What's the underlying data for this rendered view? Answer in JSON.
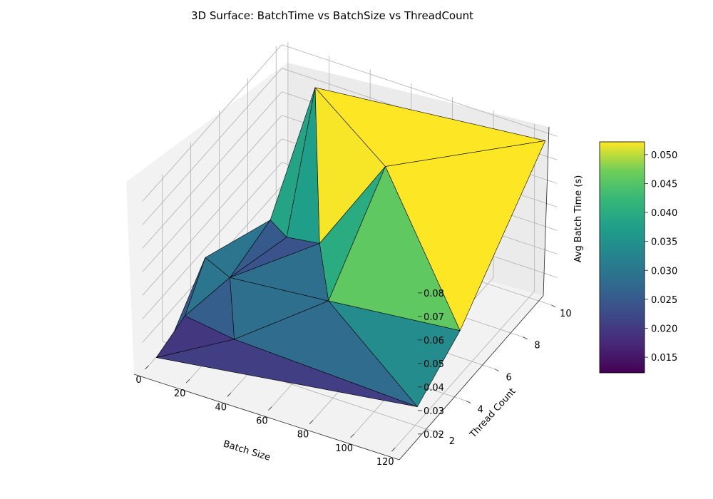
{
  "chart_data": {
    "type": "surface3d",
    "title": "3D Surface: BatchTime vs BatchSize vs ThreadCount",
    "xlabel": "Batch Size",
    "ylabel": "Thread Count",
    "zlabel": "Avg Batch Time (s)",
    "xticks": [
      "0",
      "20",
      "40",
      "60",
      "80",
      "100",
      "120"
    ],
    "yticks": [
      "2",
      "4",
      "6",
      "8",
      "10"
    ],
    "zticks": [
      "0.02",
      "0.03",
      "0.04",
      "0.05",
      "0.06",
      "0.07",
      "0.08"
    ],
    "colorbar": {
      "ticks": [
        "0.015",
        "0.020",
        "0.025",
        "0.030",
        "0.035",
        "0.040",
        "0.045",
        "0.050"
      ],
      "colormap": "viridis",
      "range": [
        0.0123,
        0.0522
      ]
    },
    "xlim": [
      -3,
      131
    ],
    "ylim": [
      0.6,
      10.4
    ],
    "zlim": [
      0.011,
      0.082
    ],
    "grid": true,
    "points": [
      {
        "x": 1,
        "y": 1,
        "z": 0.012
      },
      {
        "x": 2,
        "y": 2,
        "z": 0.015
      },
      {
        "x": 4,
        "y": 4,
        "z": 0.035
      },
      {
        "x": 8,
        "y": 2,
        "z": 0.025
      },
      {
        "x": 8,
        "y": 8,
        "z": 0.025
      },
      {
        "x": 16,
        "y": 4,
        "z": 0.03
      },
      {
        "x": 16,
        "y": 8,
        "z": 0.02
      },
      {
        "x": 16,
        "y": 10,
        "z": 0.07
      },
      {
        "x": 32,
        "y": 2,
        "z": 0.022
      },
      {
        "x": 32,
        "y": 8,
        "z": 0.022
      },
      {
        "x": 64,
        "y": 4,
        "z": 0.034
      },
      {
        "x": 64,
        "y": 8,
        "z": 0.064
      },
      {
        "x": 128,
        "y": 1,
        "z": 0.028
      },
      {
        "x": 128,
        "y": 4,
        "z": 0.04
      },
      {
        "x": 128,
        "y": 10,
        "z": 0.08
      }
    ]
  }
}
